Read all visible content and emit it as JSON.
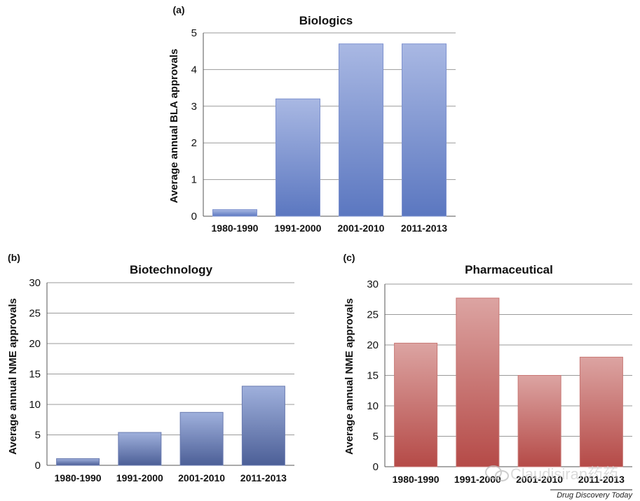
{
  "source": "Drug Discovery Today",
  "watermark": "Claudisiran药药",
  "panels": [
    {
      "letter": "(a)",
      "title": "Biologics",
      "ylabel": "Average annual BLA approvals"
    },
    {
      "letter": "(b)",
      "title": "Biotechnology",
      "ylabel": "Average annual NME approvals"
    },
    {
      "letter": "(c)",
      "title": "Pharmaceutical",
      "ylabel": "Average annual NME approvals"
    }
  ],
  "chart_data": [
    {
      "type": "bar",
      "title": "Biologics",
      "xlabel": "",
      "ylabel": "Average annual BLA approvals",
      "categories": [
        "1980-1990",
        "1991-2000",
        "2001-2010",
        "2011-2013"
      ],
      "values": [
        0.18,
        3.2,
        4.7,
        4.7
      ],
      "ylim": [
        0,
        5
      ],
      "yticks": [
        0,
        1,
        2,
        3,
        4,
        5
      ],
      "grid": true,
      "colors": {
        "top": "#a9b8e3",
        "bottom": "#5b77c0",
        "edge": "#7f93cf"
      }
    },
    {
      "type": "bar",
      "title": "Biotechnology",
      "xlabel": "",
      "ylabel": "Average annual NME approvals",
      "categories": [
        "1980-1990",
        "1991-2000",
        "2001-2010",
        "2011-2013"
      ],
      "values": [
        1.1,
        5.4,
        8.7,
        13.0
      ],
      "ylim": [
        0,
        30
      ],
      "yticks": [
        0,
        5,
        10,
        15,
        20,
        25,
        30
      ],
      "grid": true,
      "colors": {
        "top": "#9fb0dc",
        "bottom": "#4c5f97",
        "edge": "#6a7bb0"
      }
    },
    {
      "type": "bar",
      "title": "Pharmaceutical",
      "xlabel": "",
      "ylabel": "Average annual NME approvals",
      "categories": [
        "1980-1990",
        "1991-2000",
        "2001-2010",
        "2011-2013"
      ],
      "values": [
        20.3,
        27.7,
        15.0,
        18.0
      ],
      "ylim": [
        0,
        30
      ],
      "yticks": [
        0,
        5,
        10,
        15,
        20,
        25,
        30
      ],
      "grid": true,
      "colors": {
        "top": "#dca4a2",
        "bottom": "#b54a47",
        "edge": "#c87774"
      }
    }
  ]
}
